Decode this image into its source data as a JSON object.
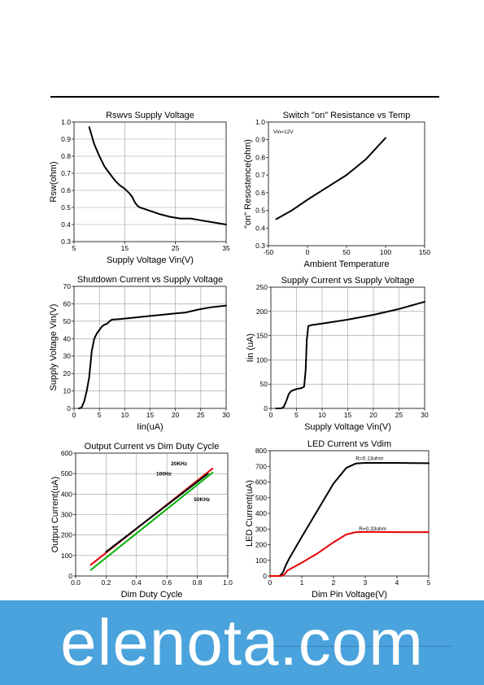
{
  "watermark": {
    "text": "elenota.com",
    "color": "#4aa3dc"
  },
  "chart_data": [
    {
      "type": "line",
      "title": "Rswvs Supply Voltage",
      "xlabel": "Supply Voltage Vin(V)",
      "ylabel": "Rsw(ohm)",
      "xlim": [
        5,
        35
      ],
      "ylim": [
        0.3,
        1.0
      ],
      "xticks": [
        "5",
        "15",
        "25",
        "35"
      ],
      "yticks": [
        "0.3",
        "0.4",
        "0.5",
        "0.6",
        "0.7",
        "0.8",
        "0.9",
        "1.0"
      ],
      "grid": true,
      "series": [
        {
          "color": "#000000",
          "x": [
            8,
            8.5,
            9,
            10,
            11,
            12,
            13,
            14,
            15,
            16,
            16.5,
            17,
            17.5,
            18,
            19,
            20,
            22,
            24,
            26,
            28,
            30,
            32,
            35
          ],
          "y": [
            0.97,
            0.92,
            0.87,
            0.8,
            0.74,
            0.7,
            0.66,
            0.63,
            0.61,
            0.58,
            0.56,
            0.53,
            0.51,
            0.5,
            0.49,
            0.48,
            0.46,
            0.445,
            0.435,
            0.435,
            0.425,
            0.415,
            0.4
          ]
        }
      ]
    },
    {
      "type": "line",
      "title": "Switch \"on\" Resistance vs Temp",
      "xlabel": "Ambient Temperature",
      "ylabel": "\"on\" Resostence(ohm)",
      "xlim": [
        -50,
        150
      ],
      "ylim": [
        0.3,
        1.0
      ],
      "xticks": [
        "-50",
        "0",
        "50",
        "100",
        "150"
      ],
      "yticks": [
        "0.3",
        "0.4",
        "0.5",
        "0.6",
        "0.7",
        "0.8",
        "0.9",
        "1.0"
      ],
      "grid": false,
      "annotations": [
        "Vin=12V"
      ],
      "series": [
        {
          "color": "#000000",
          "x": [
            -40,
            -20,
            0,
            25,
            50,
            75,
            100
          ],
          "y": [
            0.45,
            0.5,
            0.56,
            0.63,
            0.7,
            0.79,
            0.91
          ]
        }
      ]
    },
    {
      "type": "line",
      "title": "Shutdown Current vs Supply Voltage",
      "xlabel": "Iin(uA)",
      "ylabel": "Supply Voltage Vin(V)",
      "xlim": [
        0,
        30
      ],
      "ylim": [
        0,
        70
      ],
      "xticks": [
        "0",
        "5",
        "10",
        "15",
        "20",
        "25",
        "30"
      ],
      "yticks": [
        "0",
        "10",
        "20",
        "30",
        "40",
        "50",
        "60",
        "70"
      ],
      "grid": true,
      "series": [
        {
          "color": "#000000",
          "x": [
            1,
            1.5,
            2,
            2.5,
            3,
            3.5,
            4,
            4.5,
            5,
            5.5,
            6,
            6.5,
            7,
            7.5,
            8,
            10,
            15,
            20,
            22,
            25,
            27,
            30
          ],
          "y": [
            0,
            0.5,
            4,
            10,
            18,
            33,
            40,
            43,
            45,
            47,
            48,
            48.5,
            50,
            51,
            51,
            51.5,
            53,
            54.5,
            55,
            57,
            58,
            59
          ]
        }
      ]
    },
    {
      "type": "line",
      "title": "Supply Current vs Supply Voltage",
      "xlabel": "Supply Voltage Vin(V)",
      "ylabel": "Iin (uA)",
      "xlim": [
        0,
        30
      ],
      "ylim": [
        0,
        250
      ],
      "xticks": [
        "0",
        "5",
        "10",
        "15",
        "20",
        "25",
        "30"
      ],
      "yticks": [
        "0",
        "50",
        "100",
        "150",
        "200",
        "250"
      ],
      "grid": true,
      "series": [
        {
          "color": "#000000",
          "x": [
            1,
            2,
            2.5,
            3,
            3.5,
            4,
            5,
            6,
            6.5,
            6.8,
            7,
            7.3,
            8,
            10,
            15,
            20,
            25,
            30
          ],
          "y": [
            0,
            0,
            3,
            15,
            30,
            36,
            40,
            42,
            45,
            80,
            140,
            170,
            172,
            175,
            183,
            193,
            205,
            220
          ]
        }
      ]
    },
    {
      "type": "line",
      "title": "Output Current vs Dim Duty Cycle",
      "xlabel": "Dim Duty Cycle",
      "ylabel": "Output Current(uA)",
      "xlim": [
        0.0,
        1.0
      ],
      "ylim": [
        0,
        600
      ],
      "xticks": [
        "0.0",
        "0.2",
        "0.4",
        "0.6",
        "0.8",
        "1.0"
      ],
      "yticks": [
        "0",
        "100",
        "200",
        "300",
        "400",
        "500",
        "600"
      ],
      "grid": true,
      "series": [
        {
          "name": "20KHz",
          "color": "#e60000",
          "x": [
            0.1,
            0.9
          ],
          "y": [
            55,
            525
          ]
        },
        {
          "name": "100Hz",
          "color": "#000000",
          "x": [
            0.2,
            0.87
          ],
          "y": [
            118,
            500
          ]
        },
        {
          "name": "50KHz",
          "color": "#00b000",
          "x": [
            0.1,
            0.9
          ],
          "y": [
            30,
            505
          ]
        }
      ]
    },
    {
      "type": "line",
      "title": "LED Current vs Vdim",
      "xlabel": "Dim Pin Voltage(V)",
      "ylabel": "LED Current(uA)",
      "xlim": [
        0,
        5
      ],
      "ylim": [
        0,
        800
      ],
      "xticks": [
        "0",
        "1",
        "2",
        "3",
        "4",
        "5"
      ],
      "yticks": [
        "0",
        "100",
        "200",
        "300",
        "400",
        "500",
        "600",
        "700",
        "800"
      ],
      "grid": false,
      "series": [
        {
          "name": "R=0.13ohm",
          "color": "#000000",
          "x": [
            0,
            0.3,
            0.4,
            0.5,
            0.6,
            1.0,
            1.5,
            2.0,
            2.4,
            2.7,
            3.0,
            3.5,
            4.0,
            5.0
          ],
          "y": [
            0,
            0,
            20,
            70,
            110,
            250,
            420,
            590,
            690,
            718,
            722,
            722,
            722,
            720
          ]
        },
        {
          "name": "R=0.33ohm",
          "color": "#e60000",
          "x": [
            0,
            0.35,
            0.45,
            0.55,
            1.0,
            1.5,
            2.0,
            2.4,
            2.7,
            3.0,
            4.0,
            5.0
          ],
          "y": [
            0,
            0,
            10,
            35,
            85,
            145,
            215,
            265,
            280,
            282,
            280,
            280
          ]
        }
      ]
    }
  ]
}
